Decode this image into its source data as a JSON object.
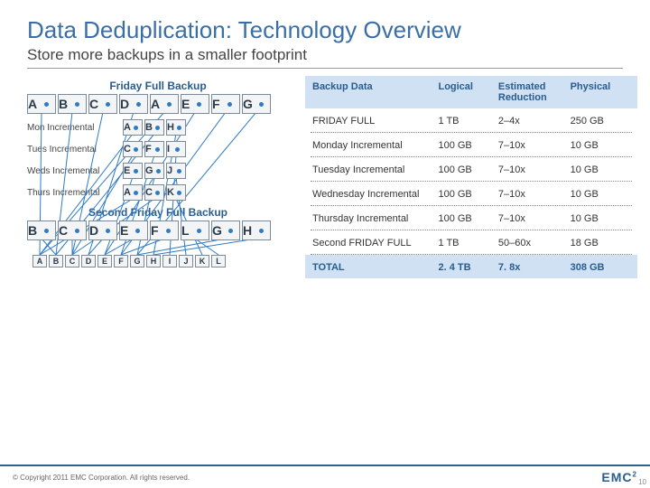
{
  "title": "Data Deduplication: Technology Overview",
  "subtitle": "Store more backups in a smaller footprint",
  "left": {
    "friday_label": "Friday Full Backup",
    "friday_blocks": [
      "A",
      "B",
      "C",
      "D",
      "A",
      "E",
      "F",
      "G"
    ],
    "inc": [
      {
        "label": "Mon Incremental",
        "blocks": [
          "A",
          "B",
          "H"
        ]
      },
      {
        "label": "Tues Incremental",
        "blocks": [
          "C",
          "F",
          "I"
        ]
      },
      {
        "label": "Weds Incremental",
        "blocks": [
          "E",
          "G",
          "J"
        ]
      },
      {
        "label": "Thurs Incremental",
        "blocks": [
          "A",
          "C",
          "K"
        ]
      }
    ],
    "second_label": "Second Friday Full Backup",
    "second_blocks": [
      "B",
      "C",
      "D",
      "E",
      "F",
      "L",
      "G",
      "H"
    ],
    "dedup_blocks": [
      "A",
      "B",
      "C",
      "D",
      "E",
      "F",
      "G",
      "H",
      "I",
      "J",
      "K",
      "L"
    ]
  },
  "table": {
    "headers": {
      "c1": "Backup Data",
      "c2": "Logical",
      "c3": "Estimated Reduction",
      "c4": "Physical"
    },
    "rows": [
      {
        "c1": "FRIDAY FULL",
        "c2": "1 TB",
        "c3": "2–4x",
        "c4": "250 GB"
      },
      {
        "c1": "Monday Incremental",
        "c2": "100 GB",
        "c3": "7–10x",
        "c4": "10 GB"
      },
      {
        "c1": "Tuesday Incremental",
        "c2": "100 GB",
        "c3": "7–10x",
        "c4": "10 GB"
      },
      {
        "c1": "Wednesday Incremental",
        "c2": "100 GB",
        "c3": "7–10x",
        "c4": "10 GB"
      },
      {
        "c1": "Thursday Incremental",
        "c2": "100 GB",
        "c3": "7–10x",
        "c4": "10 GB"
      },
      {
        "c1": "Second FRIDAY FULL",
        "c2": "1 TB",
        "c3": "50–60x",
        "c4": "18 GB"
      }
    ],
    "total": {
      "c1": "TOTAL",
      "c2": "2. 4 TB",
      "c3": "7. 8x",
      "c4": "308 GB"
    }
  },
  "footer": {
    "copyright": "© Copyright 2011 EMC Corporation. All rights reserved.",
    "logo": "EMC",
    "page": "10"
  },
  "style": {
    "accent": "#2a5c8f",
    "header_bg": "#cfe1f3",
    "line_color": "#2d7bc7"
  }
}
